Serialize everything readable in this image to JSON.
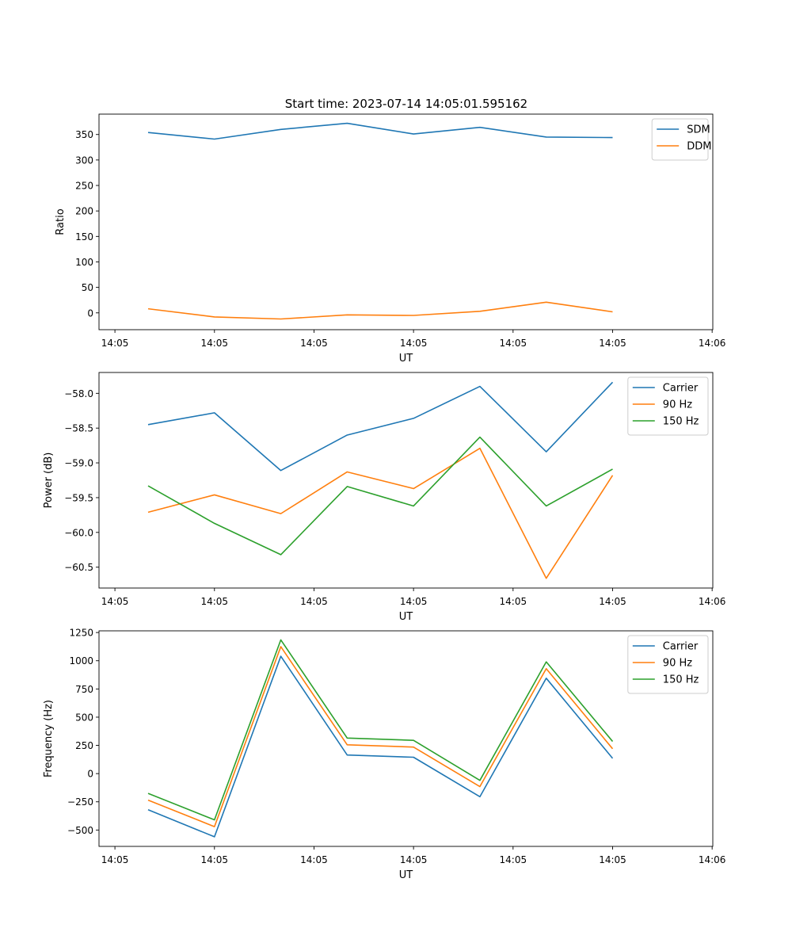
{
  "figure_title": "Start time: 2023-07-14 14:05:01.595162",
  "chart_data": [
    {
      "type": "line",
      "title": "Start time: 2023-07-14 14:05:01.595162",
      "xlabel": "UT",
      "ylabel": "Ratio",
      "x": [
        1,
        2,
        3,
        4,
        5,
        6,
        7,
        8
      ],
      "xlim": [
        0.26,
        9.51
      ],
      "xticks": [
        0.5,
        2,
        3.5,
        5,
        6.5,
        8,
        9.5
      ],
      "xtick_labels": [
        "14:05",
        "14:05",
        "14:05",
        "14:05",
        "14:05",
        "14:05",
        "14:06"
      ],
      "ylim": [
        -33,
        390
      ],
      "yticks": [
        0,
        50,
        100,
        150,
        200,
        250,
        300,
        350
      ],
      "ytick_labels": [
        "0",
        "50",
        "100",
        "150",
        "200",
        "250",
        "300",
        "350"
      ],
      "legend_position": "top-right",
      "series": [
        {
          "name": "SDM",
          "color": "#1f77b4",
          "values": [
            354,
            341,
            360,
            372,
            351,
            364,
            345,
            344
          ]
        },
        {
          "name": "DDM",
          "color": "#ff7f0e",
          "values": [
            8,
            -8,
            -12,
            -4,
            -5,
            3,
            21,
            2
          ]
        }
      ]
    },
    {
      "type": "line",
      "title": "",
      "xlabel": "UT",
      "ylabel": "Power (dB)",
      "x": [
        1,
        2,
        3,
        4,
        5,
        6,
        7,
        8
      ],
      "xlim": [
        0.26,
        9.51
      ],
      "xticks": [
        0.5,
        2,
        3.5,
        5,
        6.5,
        8,
        9.5
      ],
      "xtick_labels": [
        "14:05",
        "14:05",
        "14:05",
        "14:05",
        "14:05",
        "14:05",
        "14:06"
      ],
      "ylim": [
        -60.8,
        -57.7
      ],
      "yticks": [
        -58.0,
        -58.5,
        -59.0,
        -59.5,
        -60.0,
        -60.5
      ],
      "ytick_labels": [
        "−58.0",
        "−58.5",
        "−59.0",
        "−59.5",
        "−60.0",
        "−60.5"
      ],
      "legend_position": "top-right",
      "series": [
        {
          "name": "Carrier",
          "color": "#1f77b4",
          "values": [
            -58.45,
            -58.28,
            -59.11,
            -58.6,
            -58.36,
            -57.9,
            -58.84,
            -57.84
          ]
        },
        {
          "name": "90 Hz",
          "color": "#ff7f0e",
          "values": [
            -59.71,
            -59.46,
            -59.73,
            -59.13,
            -59.37,
            -58.79,
            -60.66,
            -59.18
          ]
        },
        {
          "name": "150 Hz",
          "color": "#2ca02c",
          "values": [
            -59.33,
            -59.87,
            -60.32,
            -59.34,
            -59.62,
            -58.63,
            -59.62,
            -59.09
          ]
        }
      ]
    },
    {
      "type": "line",
      "title": "",
      "xlabel": "UT",
      "ylabel": "Frequency (Hz)",
      "x": [
        1,
        2,
        3,
        4,
        5,
        6,
        7,
        8
      ],
      "xlim": [
        0.26,
        9.51
      ],
      "xticks": [
        0.5,
        2,
        3.5,
        5,
        6.5,
        8,
        9.5
      ],
      "xtick_labels": [
        "14:05",
        "14:05",
        "14:05",
        "14:05",
        "14:05",
        "14:05",
        "14:06"
      ],
      "ylim": [
        -645,
        1265
      ],
      "yticks": [
        1250,
        1000,
        750,
        500,
        250,
        0,
        -250,
        -500
      ],
      "ytick_labels": [
        "1250",
        "1000",
        "750",
        "500",
        "250",
        "0",
        "−250",
        "−500"
      ],
      "legend_position": "top-right",
      "series": [
        {
          "name": "Carrier",
          "color": "#1f77b4",
          "values": [
            -320,
            -560,
            1040,
            165,
            145,
            -205,
            845,
            135
          ]
        },
        {
          "name": "90 Hz",
          "color": "#ff7f0e",
          "values": [
            -235,
            -470,
            1125,
            255,
            235,
            -115,
            930,
            220
          ]
        },
        {
          "name": "150 Hz",
          "color": "#2ca02c",
          "values": [
            -175,
            -410,
            1185,
            315,
            295,
            -60,
            990,
            285
          ]
        }
      ]
    }
  ]
}
